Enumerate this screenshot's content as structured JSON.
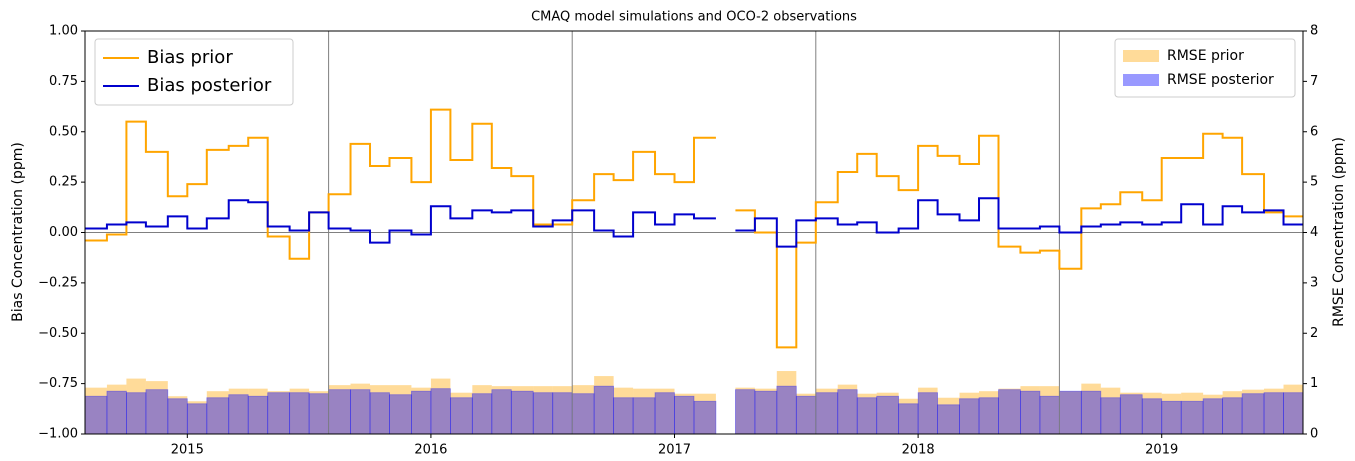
{
  "chart_data": {
    "type": "step-bar",
    "title": "CMAQ model simulations and OCO-2 observations",
    "ylabel": "Bias Concentration (ppm)",
    "y2label": "RMSE Concentration (ppm)",
    "x": [
      2014.58,
      2014.67,
      2014.75,
      2014.83,
      2014.92,
      2015.0,
      2015.08,
      2015.17,
      2015.25,
      2015.33,
      2015.42,
      2015.5,
      2015.58,
      2015.67,
      2015.75,
      2015.83,
      2015.92,
      2016.0,
      2016.08,
      2016.17,
      2016.25,
      2016.33,
      2016.42,
      2016.5,
      2016.58,
      2016.67,
      2016.75,
      2016.83,
      2016.92,
      2017.0,
      2017.08,
      2017.17,
      2017.25,
      2017.33,
      2017.42,
      2017.5,
      2017.58,
      2017.67,
      2017.75,
      2017.83,
      2017.92,
      2018.0,
      2018.08,
      2018.17,
      2018.25,
      2018.33,
      2018.42,
      2018.5,
      2018.58,
      2018.67,
      2018.75,
      2018.83,
      2018.92,
      2019.0,
      2019.08,
      2019.17,
      2019.25,
      2019.33,
      2019.42,
      2019.5
    ],
    "series": [
      {
        "name": "Bias prior",
        "color": "#ffa500",
        "kind": "step",
        "values": [
          -0.04,
          -0.01,
          0.55,
          0.4,
          0.18,
          0.24,
          0.41,
          0.43,
          0.47,
          -0.02,
          -0.13,
          0.1,
          0.19,
          0.44,
          0.33,
          0.37,
          0.25,
          0.61,
          0.36,
          0.54,
          0.32,
          0.28,
          0.04,
          0.04,
          0.16,
          0.29,
          0.26,
          0.4,
          0.29,
          0.25,
          0.47,
          null,
          0.11,
          0.0,
          -0.57,
          -0.05,
          0.15,
          0.3,
          0.39,
          0.28,
          0.21,
          0.43,
          0.38,
          0.34,
          0.48,
          -0.07,
          -0.1,
          -0.09,
          -0.18,
          0.12,
          0.14,
          0.2,
          0.16,
          0.37,
          0.37,
          0.49,
          0.47,
          0.29,
          0.1,
          0.08
        ]
      },
      {
        "name": "Bias posterior",
        "color": "#0000cd",
        "kind": "step",
        "values": [
          0.02,
          0.04,
          0.05,
          0.03,
          0.08,
          0.02,
          0.07,
          0.16,
          0.15,
          0.03,
          0.01,
          0.1,
          0.02,
          0.01,
          -0.05,
          0.01,
          -0.01,
          0.13,
          0.07,
          0.11,
          0.1,
          0.11,
          0.03,
          0.06,
          0.11,
          0.01,
          -0.02,
          0.1,
          0.04,
          0.09,
          0.07,
          null,
          0.01,
          0.07,
          -0.07,
          0.06,
          0.07,
          0.04,
          0.05,
          0.0,
          0.02,
          0.16,
          0.09,
          0.06,
          0.17,
          0.02,
          0.02,
          0.03,
          0.0,
          0.03,
          0.04,
          0.05,
          0.04,
          0.05,
          0.14,
          0.04,
          0.13,
          0.1,
          0.11,
          0.04
        ]
      },
      {
        "name": "RMSE prior",
        "color": "#ffa500",
        "kind": "bar",
        "axis": "y2",
        "values": [
          0.92,
          0.98,
          1.1,
          1.05,
          0.75,
          0.65,
          0.85,
          0.9,
          0.9,
          0.85,
          0.9,
          0.85,
          0.97,
          1.0,
          0.97,
          0.97,
          0.92,
          1.1,
          0.82,
          0.97,
          0.95,
          0.95,
          0.95,
          0.95,
          0.97,
          1.15,
          0.92,
          0.9,
          0.9,
          0.8,
          0.8,
          null,
          0.92,
          0.9,
          1.25,
          0.8,
          0.9,
          0.98,
          0.8,
          0.82,
          0.7,
          0.92,
          0.72,
          0.82,
          0.85,
          0.9,
          0.95,
          0.95,
          0.85,
          1.0,
          0.92,
          0.82,
          0.82,
          0.8,
          0.82,
          0.78,
          0.85,
          0.88,
          0.9,
          0.98
        ]
      },
      {
        "name": "RMSE posterior",
        "color": "#0000ff",
        "kind": "bar",
        "axis": "y2",
        "values": [
          0.75,
          0.85,
          0.82,
          0.88,
          0.7,
          0.6,
          0.72,
          0.78,
          0.75,
          0.82,
          0.82,
          0.8,
          0.88,
          0.88,
          0.82,
          0.78,
          0.85,
          0.9,
          0.72,
          0.8,
          0.88,
          0.85,
          0.82,
          0.82,
          0.8,
          0.95,
          0.72,
          0.72,
          0.82,
          0.75,
          0.65,
          null,
          0.88,
          0.85,
          0.95,
          0.75,
          0.82,
          0.88,
          0.72,
          0.75,
          0.6,
          0.82,
          0.58,
          0.7,
          0.72,
          0.88,
          0.85,
          0.75,
          0.85,
          0.85,
          0.72,
          0.78,
          0.7,
          0.65,
          0.65,
          0.7,
          0.72,
          0.8,
          0.82,
          0.82
        ]
      }
    ],
    "xlim": [
      2014.58,
      2019.58
    ],
    "xticks": [
      2015,
      2016,
      2017,
      2018,
      2019
    ],
    "ylim": [
      -1,
      1
    ],
    "yticks": [
      {
        "value": -1,
        "label": "−1.00"
      },
      {
        "value": -0.75,
        "label": "−0.75"
      },
      {
        "value": -0.5,
        "label": "−0.50"
      },
      {
        "value": -0.25,
        "label": "−0.25"
      },
      {
        "value": 0,
        "label": "0.00"
      },
      {
        "value": 0.25,
        "label": "0.25"
      },
      {
        "value": 0.5,
        "label": "0.50"
      },
      {
        "value": 0.75,
        "label": "0.75"
      },
      {
        "value": 1,
        "label": "1.00"
      }
    ],
    "y2lim": [
      0,
      8
    ],
    "y2ticks": [
      0,
      1,
      2,
      3,
      4,
      5,
      6,
      7,
      8
    ],
    "vlines": [
      2015.58,
      2016.58,
      2017.58,
      2018.58
    ],
    "hline": 0,
    "legend": [
      "upper left",
      "upper right"
    ]
  }
}
